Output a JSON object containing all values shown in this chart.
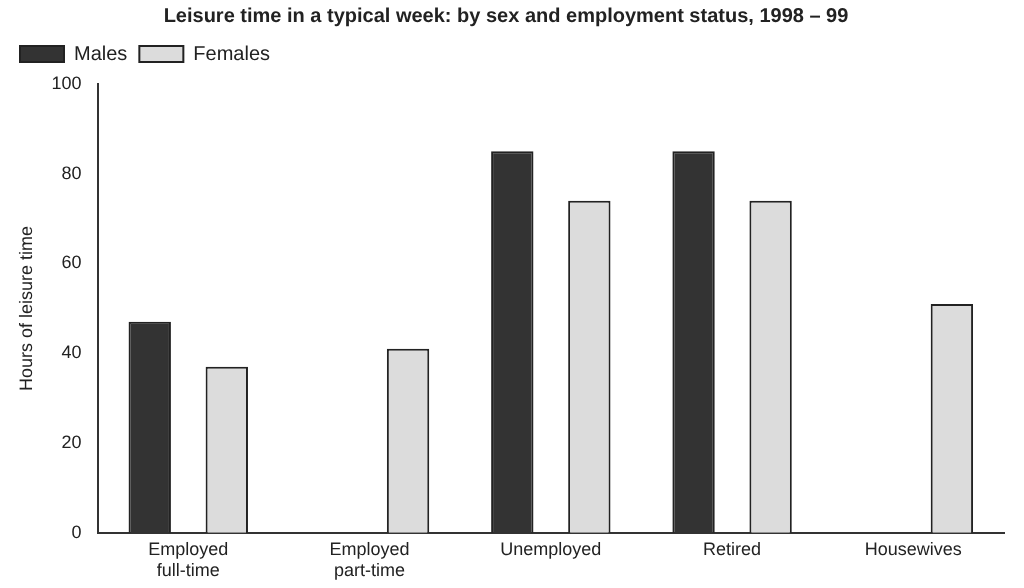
{
  "chart_data": {
    "type": "bar",
    "title": "Leisure time in a typical week: by sex and employment status, 1998 – 99",
    "ylabel": "Hours of leisure time",
    "categories": [
      "Employed full-time",
      "Employed part-time",
      "Unemployed",
      "Retired",
      "Housewives"
    ],
    "series": [
      {
        "name": "Males",
        "color": "#333333",
        "values": [
          47,
          null,
          85,
          85,
          null
        ]
      },
      {
        "name": "Females",
        "color": "#dcdcdc",
        "values": [
          37,
          41,
          74,
          74,
          51
        ]
      }
    ],
    "ylim": [
      0,
      100
    ],
    "yticks": [
      0,
      20,
      40,
      60,
      80,
      100
    ],
    "grid": false,
    "legend": "top left"
  }
}
